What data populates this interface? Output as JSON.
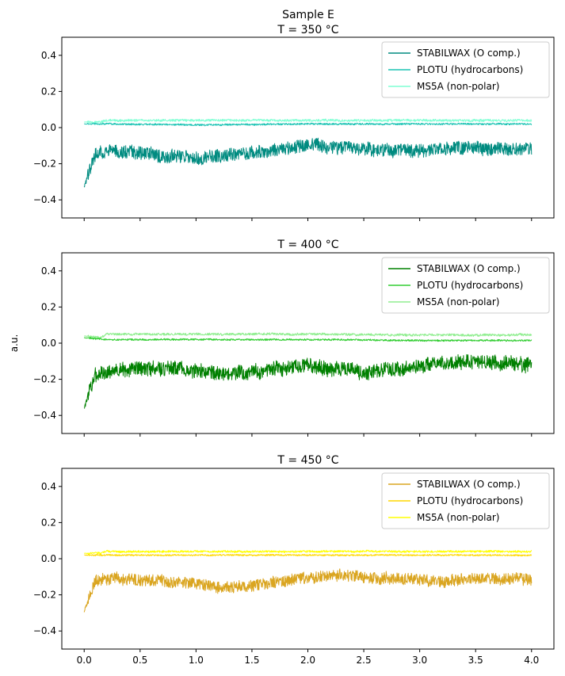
{
  "chart_data": [
    {
      "type": "line",
      "suptitle": "Sample E",
      "title": "T = 350 °C",
      "ylabel": "",
      "xlim": [
        -0.2,
        4.2
      ],
      "ylim": [
        -0.5,
        0.5
      ],
      "yticks": [
        -0.4,
        -0.2,
        0.0,
        0.2,
        0.4
      ],
      "ytick_labels": [
        "−0.4",
        "−0.2",
        "0.0",
        "0.2",
        "0.4"
      ],
      "grid": false,
      "legend": "top-right",
      "series": [
        {
          "name": "STABILWAX (O comp.)",
          "color": "#008b80",
          "x": [
            0.0,
            0.1,
            0.2,
            0.5,
            1.0,
            1.5,
            2.0,
            2.5,
            3.0,
            3.5,
            4.0
          ],
          "values": [
            -0.33,
            -0.15,
            -0.13,
            -0.14,
            -0.17,
            -0.14,
            -0.1,
            -0.12,
            -0.13,
            -0.11,
            -0.12
          ],
          "noise": 0.045
        },
        {
          "name": "PLOTU (hydrocarbons)",
          "color": "#1ac3b3",
          "x": [
            0.0,
            0.2,
            1.0,
            2.0,
            3.0,
            4.0
          ],
          "values": [
            0.02,
            0.02,
            0.015,
            0.02,
            0.02,
            0.02
          ],
          "noise": 0.006
        },
        {
          "name": "MS5A (non-polar)",
          "color": "#7fffd4",
          "x": [
            0.0,
            0.15,
            0.2,
            1.0,
            2.0,
            3.0,
            4.0
          ],
          "values": [
            0.03,
            0.03,
            0.04,
            0.04,
            0.04,
            0.04,
            0.04
          ],
          "noise": 0.008
        }
      ]
    },
    {
      "type": "line",
      "title": "T = 400 °C",
      "ylabel": "a.u.",
      "xlim": [
        -0.2,
        4.2
      ],
      "ylim": [
        -0.5,
        0.5
      ],
      "yticks": [
        -0.4,
        -0.2,
        0.0,
        0.2,
        0.4
      ],
      "ytick_labels": [
        "−0.4",
        "−0.2",
        "0.0",
        "0.2",
        "0.4"
      ],
      "grid": false,
      "legend": "top-right",
      "series": [
        {
          "name": "STABILWAX (O comp.)",
          "color": "#008000",
          "x": [
            0.0,
            0.1,
            0.3,
            0.8,
            1.2,
            1.6,
            2.0,
            2.5,
            3.0,
            3.5,
            4.0
          ],
          "values": [
            -0.36,
            -0.17,
            -0.15,
            -0.13,
            -0.17,
            -0.15,
            -0.12,
            -0.16,
            -0.12,
            -0.1,
            -0.12
          ],
          "noise": 0.05
        },
        {
          "name": "PLOTU (hydrocarbons)",
          "color": "#32cd32",
          "x": [
            0.0,
            0.2,
            1.0,
            2.0,
            3.0,
            4.0
          ],
          "values": [
            0.03,
            0.02,
            0.02,
            0.02,
            0.015,
            0.015
          ],
          "noise": 0.006
        },
        {
          "name": "MS5A (non-polar)",
          "color": "#90ee90",
          "x": [
            0.0,
            0.15,
            0.2,
            1.0,
            2.0,
            3.0,
            4.0
          ],
          "values": [
            0.04,
            0.03,
            0.05,
            0.05,
            0.05,
            0.045,
            0.045
          ],
          "noise": 0.008
        }
      ]
    },
    {
      "type": "line",
      "title": "T = 450 °C",
      "ylabel": "",
      "xlim": [
        -0.2,
        4.2
      ],
      "ylim": [
        -0.5,
        0.5
      ],
      "xticks": [
        0.0,
        0.5,
        1.0,
        1.5,
        2.0,
        2.5,
        3.0,
        3.5,
        4.0
      ],
      "xtick_labels": [
        "0.0",
        "0.5",
        "1.0",
        "1.5",
        "2.0",
        "2.5",
        "3.0",
        "3.5",
        "4.0"
      ],
      "yticks": [
        -0.4,
        -0.2,
        0.0,
        0.2,
        0.4
      ],
      "ytick_labels": [
        "−0.4",
        "−0.2",
        "0.0",
        "0.2",
        "0.4"
      ],
      "grid": false,
      "legend": "top-right",
      "series": [
        {
          "name": "STABILWAX (O comp.)",
          "color": "#daa520",
          "x": [
            0.0,
            0.1,
            0.3,
            0.8,
            1.3,
            1.8,
            2.2,
            2.7,
            3.2,
            3.7,
            4.0
          ],
          "values": [
            -0.29,
            -0.12,
            -0.11,
            -0.13,
            -0.16,
            -0.12,
            -0.09,
            -0.11,
            -0.12,
            -0.11,
            -0.12
          ],
          "noise": 0.04
        },
        {
          "name": "PLOTU (hydrocarbons)",
          "color": "#ffd700",
          "x": [
            0.0,
            0.2,
            1.0,
            2.0,
            3.0,
            4.0
          ],
          "values": [
            0.02,
            0.02,
            0.02,
            0.02,
            0.02,
            0.02
          ],
          "noise": 0.005
        },
        {
          "name": "MS5A (non-polar)",
          "color": "#ffff00",
          "x": [
            0.0,
            0.15,
            0.2,
            1.0,
            2.0,
            3.0,
            4.0
          ],
          "values": [
            0.03,
            0.03,
            0.04,
            0.04,
            0.04,
            0.04,
            0.04
          ],
          "noise": 0.007
        }
      ]
    }
  ]
}
